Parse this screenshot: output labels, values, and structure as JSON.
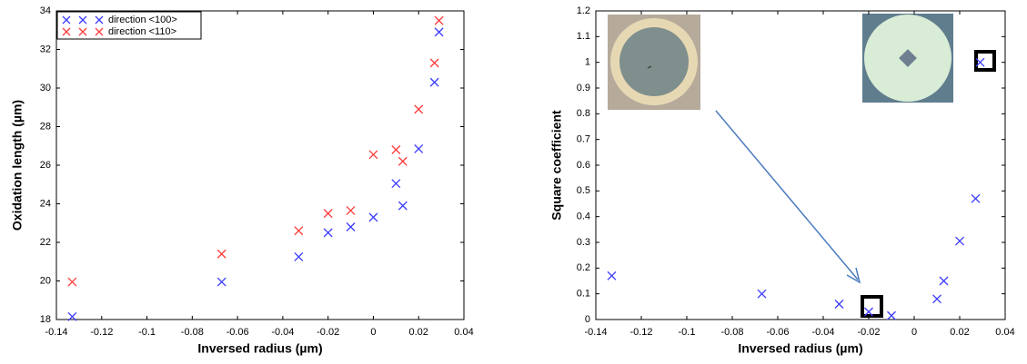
{
  "chart_data": [
    {
      "type": "scatter",
      "ylabel": "Oxidation length (µm)",
      "xlabel": "Inversed radius (µm)",
      "xlim": [
        -0.14,
        0.04
      ],
      "xticks": [
        -0.14,
        -0.12,
        -0.1,
        -0.08,
        -0.06,
        -0.04,
        -0.02,
        0,
        0.02,
        0.04
      ],
      "ylim": [
        18,
        34
      ],
      "yticks": [
        18,
        20,
        22,
        24,
        26,
        28,
        30,
        32,
        34
      ],
      "legend": "upper left",
      "series": [
        {
          "name": "direction <100>",
          "color": "#3b3bff",
          "x": [
            -0.133,
            -0.067,
            -0.033,
            -0.02,
            -0.01,
            0,
            0.01,
            0.013,
            0.02,
            0.027,
            0.029
          ],
          "values": [
            18.15,
            19.95,
            21.25,
            22.5,
            22.8,
            23.3,
            25.05,
            23.9,
            26.85,
            30.3,
            32.9
          ]
        },
        {
          "name": "direction <110>",
          "color": "#ff3b3b",
          "x": [
            -0.133,
            -0.067,
            -0.033,
            -0.02,
            -0.01,
            0,
            0.01,
            0.013,
            0.02,
            0.027,
            0.029
          ],
          "values": [
            19.95,
            21.4,
            22.6,
            23.5,
            23.65,
            26.55,
            26.8,
            26.2,
            28.9,
            31.3,
            33.5
          ]
        }
      ]
    },
    {
      "type": "scatter",
      "ylabel": "Square coefficient",
      "xlabel": "Inversed radius (µm)",
      "xlim": [
        -0.14,
        0.04
      ],
      "xticks": [
        -0.14,
        -0.12,
        -0.1,
        -0.08,
        -0.06,
        -0.04,
        -0.02,
        0,
        0.02,
        0.04
      ],
      "ylim": [
        0,
        1.2
      ],
      "yticks": [
        0,
        0.1,
        0.2,
        0.3,
        0.4,
        0.5,
        0.6,
        0.7,
        0.8,
        0.9,
        1,
        1.1,
        1.2
      ],
      "series": [
        {
          "color": "#3b3bff",
          "x": [
            -0.133,
            -0.067,
            -0.033,
            -0.02,
            -0.01,
            0.01,
            0.013,
            0.02,
            0.027,
            0.029
          ],
          "values": [
            0.17,
            0.1,
            0.06,
            0.03,
            0.015,
            0.08,
            0.15,
            0.305,
            0.47,
            1
          ]
        }
      ]
    }
  ]
}
